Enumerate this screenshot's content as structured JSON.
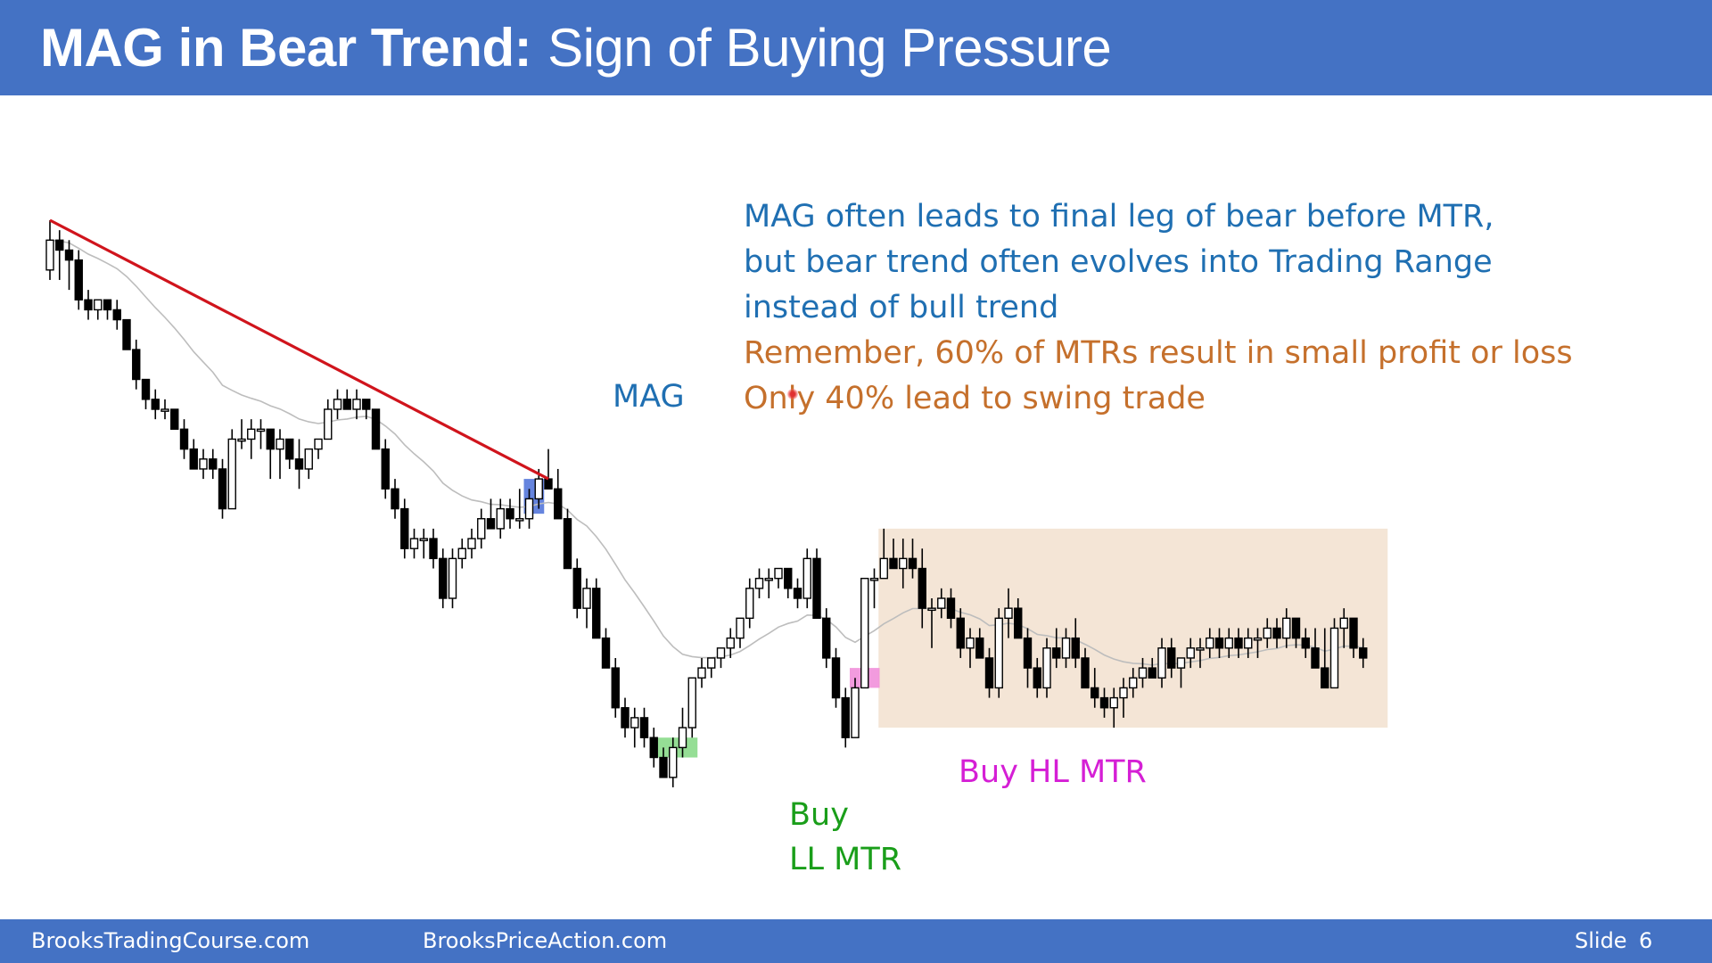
{
  "title": {
    "bold": "MAG in Bear Trend:",
    "regular": "Sign of Buying Pressure"
  },
  "notes": {
    "line1": "MAG often leads to final leg of bear before MTR,",
    "line2": "but bear trend often evolves into Trading Range",
    "line3": "instead of bull trend",
    "line4": "Remember, 60% of MTRs result in small profit or loss",
    "line5": "Only 40% lead to swing trade"
  },
  "annotations": {
    "mag": "MAG",
    "buy_ll_1": "Buy",
    "buy_ll_2": "LL MTR",
    "buy_hl": "Buy HL MTR"
  },
  "footer": {
    "site1": "BrooksTradingCourse.com",
    "site2": "BrooksPriceAction.com",
    "slide_label": "Slide",
    "slide_number": "6"
  },
  "colors": {
    "header": "#4472c4",
    "trendline": "#d0141c",
    "mag_box": "#4a6fd8",
    "ll_box": "#7ad67a",
    "hl_box": "#f08ad8",
    "range_box": "#f3e2d2",
    "ema": "#bdbdbd"
  },
  "chart_data": {
    "type": "candlestick",
    "y_direction": "price, higher is up (unitless)",
    "candles": [
      [
        84,
        89,
        83,
        87
      ],
      [
        87,
        88,
        83,
        86
      ],
      [
        86,
        87,
        82,
        85
      ],
      [
        85,
        86,
        80,
        81
      ],
      [
        81,
        82,
        79,
        80
      ],
      [
        80,
        81,
        79,
        81
      ],
      [
        81,
        81,
        79,
        80
      ],
      [
        80,
        81,
        78,
        79
      ],
      [
        79,
        79,
        76,
        76
      ],
      [
        76,
        77,
        72,
        73
      ],
      [
        73,
        73,
        70,
        71
      ],
      [
        71,
        72,
        69,
        70
      ],
      [
        70,
        71,
        69,
        70
      ],
      [
        70,
        70,
        68,
        68
      ],
      [
        68,
        69,
        65,
        66
      ],
      [
        66,
        67,
        64,
        64
      ],
      [
        64,
        66,
        63,
        65
      ],
      [
        65,
        66,
        63,
        64
      ],
      [
        64,
        65,
        59,
        60
      ],
      [
        60,
        68,
        60,
        67
      ],
      [
        67,
        69,
        66,
        67
      ],
      [
        67,
        69,
        65,
        68
      ],
      [
        68,
        69,
        66,
        68
      ],
      [
        68,
        68,
        63,
        66
      ],
      [
        66,
        68,
        63,
        67
      ],
      [
        67,
        67,
        64,
        65
      ],
      [
        65,
        67,
        62,
        64
      ],
      [
        64,
        66,
        63,
        66
      ],
      [
        66,
        67,
        65,
        67
      ],
      [
        67,
        71,
        67,
        70
      ],
      [
        70,
        72,
        69,
        71
      ],
      [
        71,
        72,
        70,
        70
      ],
      [
        70,
        72,
        69,
        71
      ],
      [
        71,
        71,
        69,
        70
      ],
      [
        70,
        70,
        66,
        66
      ],
      [
        66,
        67,
        61,
        62
      ],
      [
        62,
        63,
        59,
        60
      ],
      [
        60,
        61,
        55,
        56
      ],
      [
        56,
        58,
        55,
        57
      ],
      [
        57,
        58,
        55,
        57
      ],
      [
        57,
        58,
        54,
        55
      ],
      [
        55,
        56,
        50,
        51
      ],
      [
        51,
        56,
        50,
        55
      ],
      [
        55,
        57,
        54,
        56
      ],
      [
        56,
        58,
        55,
        57
      ],
      [
        57,
        60,
        56,
        59
      ],
      [
        59,
        61,
        58,
        58
      ],
      [
        58,
        61,
        57,
        60
      ],
      [
        60,
        61,
        58,
        59
      ],
      [
        59,
        62,
        58,
        59
      ],
      [
        59,
        62,
        58,
        61
      ],
      [
        61,
        64,
        60,
        63
      ],
      [
        63,
        66,
        62,
        62
      ],
      [
        62,
        64,
        59,
        59
      ],
      [
        59,
        60,
        54,
        54
      ],
      [
        54,
        55,
        49,
        50
      ],
      [
        50,
        53,
        48,
        52
      ],
      [
        52,
        53,
        47,
        47
      ],
      [
        47,
        48,
        44,
        44
      ],
      [
        44,
        45,
        39,
        40
      ],
      [
        40,
        41,
        37,
        38
      ],
      [
        38,
        40,
        36,
        39
      ],
      [
        39,
        40,
        36,
        37
      ],
      [
        37,
        38,
        34,
        35
      ],
      [
        35,
        36,
        33,
        33
      ],
      [
        33,
        37,
        32,
        36
      ],
      [
        36,
        40,
        35,
        38
      ],
      [
        38,
        43,
        37,
        43
      ],
      [
        43,
        45,
        42,
        44
      ],
      [
        44,
        45,
        43,
        45
      ],
      [
        45,
        46,
        44,
        46
      ],
      [
        46,
        48,
        45,
        47
      ],
      [
        47,
        49,
        46,
        49
      ],
      [
        49,
        53,
        48,
        52
      ],
      [
        52,
        54,
        51,
        53
      ],
      [
        53,
        54,
        51,
        53
      ],
      [
        53,
        54,
        52,
        54
      ],
      [
        54,
        54,
        51,
        52
      ],
      [
        52,
        53,
        50,
        51
      ],
      [
        51,
        56,
        50,
        55
      ],
      [
        55,
        56,
        49,
        49
      ],
      [
        49,
        50,
        44,
        45
      ],
      [
        45,
        46,
        40,
        41
      ],
      [
        41,
        42,
        36,
        37
      ],
      [
        37,
        43,
        37,
        42
      ],
      [
        42,
        53,
        42,
        53
      ],
      [
        53,
        54,
        50,
        53
      ],
      [
        53,
        58,
        53,
        55
      ],
      [
        55,
        57,
        54,
        54
      ],
      [
        54,
        57,
        52,
        55
      ],
      [
        55,
        57,
        53,
        54
      ],
      [
        54,
        56,
        48,
        50
      ],
      [
        50,
        51,
        46,
        50
      ],
      [
        50,
        52,
        49,
        51
      ],
      [
        51,
        52,
        48,
        49
      ],
      [
        49,
        50,
        45,
        46
      ],
      [
        46,
        48,
        44,
        47
      ],
      [
        47,
        48,
        45,
        45
      ],
      [
        45,
        46,
        41,
        42
      ],
      [
        42,
        50,
        41,
        49
      ],
      [
        49,
        52,
        47,
        50
      ],
      [
        50,
        51,
        47,
        47
      ],
      [
        47,
        48,
        42,
        44
      ],
      [
        44,
        45,
        41,
        42
      ],
      [
        42,
        47,
        41,
        46
      ],
      [
        46,
        48,
        44,
        45
      ],
      [
        45,
        48,
        44,
        47
      ],
      [
        47,
        49,
        44,
        45
      ],
      [
        45,
        46,
        42,
        42
      ],
      [
        42,
        44,
        40,
        41
      ],
      [
        41,
        42,
        39,
        40
      ],
      [
        40,
        42,
        38,
        41
      ],
      [
        41,
        43,
        39,
        42
      ],
      [
        42,
        44,
        41,
        43
      ],
      [
        43,
        45,
        42,
        44
      ],
      [
        44,
        45,
        43,
        43
      ],
      [
        43,
        47,
        42,
        46
      ],
      [
        46,
        47,
        43,
        44
      ],
      [
        44,
        45,
        42,
        45
      ],
      [
        45,
        47,
        44,
        46
      ],
      [
        46,
        47,
        44,
        46
      ],
      [
        46,
        48,
        45,
        47
      ],
      [
        47,
        48,
        45,
        46
      ],
      [
        46,
        48,
        45,
        47
      ],
      [
        47,
        48,
        45,
        46
      ],
      [
        46,
        48,
        45,
        47
      ],
      [
        47,
        48,
        45,
        47
      ],
      [
        47,
        49,
        46,
        48
      ],
      [
        48,
        49,
        46,
        47
      ],
      [
        47,
        50,
        46,
        49
      ],
      [
        49,
        49,
        46,
        47
      ],
      [
        47,
        48,
        45,
        46
      ],
      [
        46,
        48,
        44,
        44
      ],
      [
        44,
        48,
        42,
        42
      ],
      [
        42,
        49,
        42,
        48
      ],
      [
        48,
        50,
        46,
        49
      ],
      [
        49,
        49,
        45,
        46
      ],
      [
        46,
        47,
        44,
        45
      ]
    ],
    "trendline": {
      "from": [
        0,
        89
      ],
      "to": [
        52,
        63
      ]
    },
    "ema_period": 20
  }
}
